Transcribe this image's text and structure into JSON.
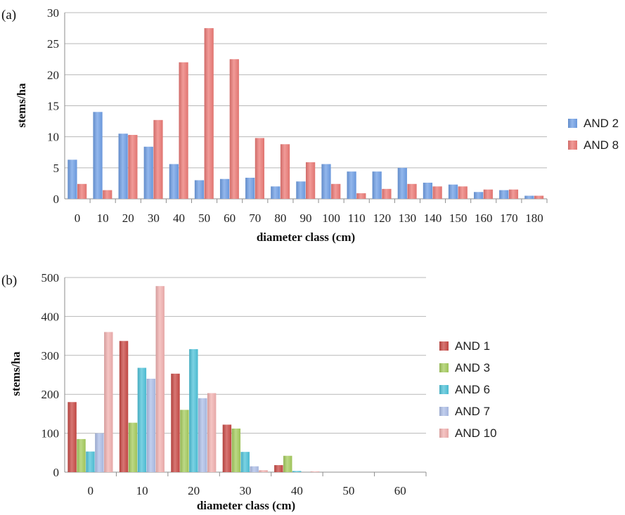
{
  "chart_data": [
    {
      "type": "bar",
      "panel_label": "(a)",
      "xlabel": "diameter class (cm)",
      "ylabel": "stems/ha",
      "ylim": [
        0,
        30
      ],
      "yticks": [
        0,
        5,
        10,
        15,
        20,
        25,
        30
      ],
      "grid": true,
      "legend_position": "right",
      "categories": [
        "0",
        "10",
        "20",
        "30",
        "40",
        "50",
        "60",
        "70",
        "80",
        "90",
        "100",
        "110",
        "120",
        "130",
        "140",
        "150",
        "160",
        "170",
        "180"
      ],
      "series": [
        {
          "name": "AND 2",
          "color": "#6f9fe6",
          "values": [
            6.3,
            14.0,
            10.5,
            8.4,
            5.6,
            3.0,
            3.2,
            3.4,
            2.0,
            2.8,
            5.6,
            4.4,
            4.4,
            5.0,
            2.6,
            2.3,
            1.1,
            1.4,
            0.5
          ]
        },
        {
          "name": "AND 8",
          "color": "#ec7a76",
          "values": [
            2.4,
            1.4,
            10.3,
            12.7,
            22.0,
            27.5,
            22.5,
            9.8,
            8.8,
            5.9,
            2.4,
            0.9,
            1.6,
            2.4,
            2.0,
            2.0,
            1.5,
            1.5,
            0.5
          ]
        }
      ]
    },
    {
      "type": "bar",
      "panel_label": "(b)",
      "xlabel": "diameter class (cm)",
      "ylabel": "stems/ha",
      "ylim": [
        0,
        500
      ],
      "yticks": [
        0,
        100,
        200,
        300,
        400,
        500
      ],
      "grid": true,
      "legend_position": "right",
      "categories": [
        "0",
        "10",
        "20",
        "30",
        "40",
        "50",
        "60"
      ],
      "series": [
        {
          "name": "AND 1",
          "color": "#c94a45",
          "values": [
            180,
            337,
            253,
            122,
            18,
            0,
            0
          ]
        },
        {
          "name": "AND 3",
          "color": "#a6cc5e",
          "values": [
            85,
            127,
            160,
            112,
            42,
            0,
            0
          ]
        },
        {
          "name": "AND 6",
          "color": "#4fc3da",
          "values": [
            53,
            268,
            316,
            52,
            3,
            0,
            0
          ]
        },
        {
          "name": "AND 7",
          "color": "#aebfe8",
          "values": [
            100,
            240,
            190,
            15,
            0,
            0,
            0
          ]
        },
        {
          "name": "AND 10",
          "color": "#f2b1b0",
          "values": [
            360,
            478,
            203,
            5,
            2,
            0,
            0
          ]
        }
      ]
    }
  ]
}
